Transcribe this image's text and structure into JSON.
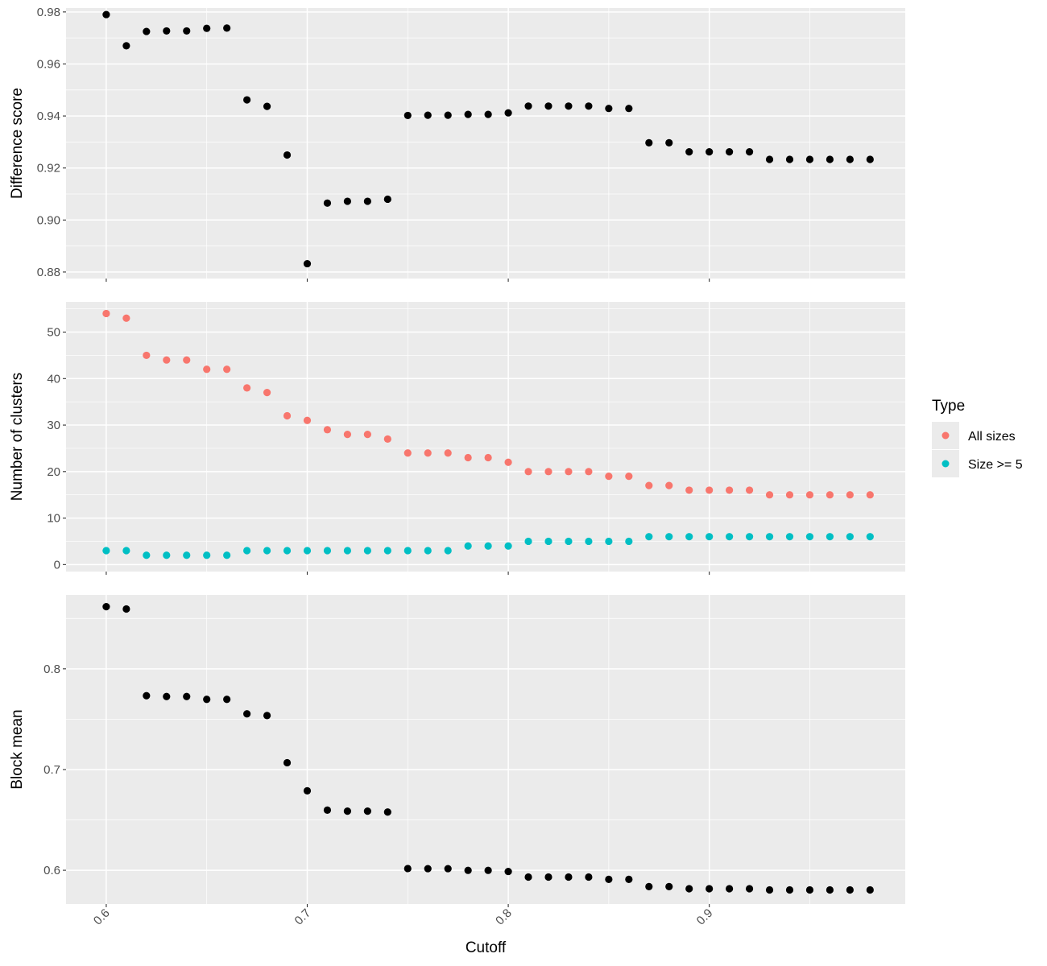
{
  "chart_data": {
    "type": "scatter",
    "x": [
      0.6,
      0.61,
      0.62,
      0.63,
      0.64,
      0.65,
      0.66,
      0.67,
      0.68,
      0.69,
      0.7,
      0.71,
      0.72,
      0.73,
      0.74,
      0.75,
      0.76,
      0.77,
      0.78,
      0.79,
      0.8,
      0.81,
      0.82,
      0.83,
      0.84,
      0.85,
      0.86,
      0.87,
      0.88,
      0.89,
      0.9,
      0.91,
      0.92,
      0.93,
      0.94,
      0.95,
      0.96,
      0.97,
      0.98
    ],
    "xlabel": "Cutoff",
    "xlim": [
      0.58,
      0.9975
    ],
    "xticks": [
      0.6,
      0.7,
      0.8,
      0.9
    ],
    "xtick_labels": [
      "0.6",
      "0.7",
      "0.8",
      "0.9"
    ],
    "grid": true,
    "legend_position": "right",
    "colors": {
      "panel_bg": "#ebebeb",
      "grid": "#ffffff",
      "point": "#000000",
      "all_sizes": "#f8766d",
      "size_ge_5": "#00bfc4"
    },
    "panels": [
      {
        "ylabel": "Difference score",
        "ylim": [
          0.8775,
          0.9815
        ],
        "yticks": [
          0.88,
          0.9,
          0.92,
          0.94,
          0.96,
          0.98
        ],
        "ytick_labels": [
          "0.88",
          "0.90",
          "0.92",
          "0.94",
          "0.96",
          "0.98"
        ],
        "series": [
          {
            "color": "#000000",
            "values": [
              0.979,
              0.967,
              0.9725,
              0.9727,
              0.9727,
              0.9737,
              0.9738,
              0.9462,
              0.9437,
              0.925,
              0.8832,
              0.9065,
              0.9072,
              0.9072,
              0.908,
              0.9402,
              0.9403,
              0.9403,
              0.9406,
              0.9406,
              0.9412,
              0.9438,
              0.9438,
              0.9438,
              0.9438,
              0.9429,
              0.9429,
              0.9297,
              0.9297,
              0.9262,
              0.9262,
              0.9262,
              0.9262,
              0.9233,
              0.9233,
              0.9233,
              0.9233,
              0.9233,
              0.9233
            ]
          }
        ]
      },
      {
        "ylabel": "Number of clusters",
        "ylim": [
          -1.5,
          56.5
        ],
        "yticks": [
          0,
          10,
          20,
          30,
          40,
          50
        ],
        "ytick_labels": [
          "0",
          "10",
          "20",
          "30",
          "40",
          "50"
        ],
        "series": [
          {
            "name": "All sizes",
            "color": "#f8766d",
            "values": [
              54,
              53,
              45,
              44,
              44,
              42,
              42,
              38,
              37,
              32,
              31,
              29,
              28,
              28,
              27,
              24,
              24,
              24,
              23,
              23,
              22,
              20,
              20,
              20,
              20,
              19,
              19,
              17,
              17,
              16,
              16,
              16,
              16,
              15,
              15,
              15,
              15,
              15,
              15
            ]
          },
          {
            "name": "Size >= 5",
            "color": "#00bfc4",
            "values": [
              3,
              3,
              2,
              2,
              2,
              2,
              2,
              3,
              3,
              3,
              3,
              3,
              3,
              3,
              3,
              3,
              3,
              3,
              4,
              4,
              4,
              5,
              5,
              5,
              5,
              5,
              5,
              6,
              6,
              6,
              6,
              6,
              6,
              6,
              6,
              6,
              6,
              6,
              6
            ]
          }
        ]
      },
      {
        "ylabel": "Block mean",
        "ylim": [
          0.5665,
          0.8734
        ],
        "yticks": [
          0.6,
          0.7,
          0.8
        ],
        "ytick_labels": [
          "0.6",
          "0.7",
          "0.8"
        ],
        "series": [
          {
            "color": "#000000",
            "values": [
              0.8617,
              0.8594,
              0.7733,
              0.7725,
              0.7725,
              0.7697,
              0.7697,
              0.7553,
              0.7536,
              0.7068,
              0.6789,
              0.6597,
              0.6587,
              0.6587,
              0.6578,
              0.6017,
              0.6016,
              0.6016,
              0.5999,
              0.5999,
              0.5988,
              0.5933,
              0.5933,
              0.5933,
              0.5933,
              0.591,
              0.591,
              0.5838,
              0.5838,
              0.5817,
              0.5817,
              0.5817,
              0.5817,
              0.5805,
              0.5805,
              0.5805,
              0.5805,
              0.5805,
              0.5805
            ]
          }
        ]
      }
    ],
    "legend": {
      "title": "Type",
      "entries": [
        {
          "label": "All sizes",
          "color": "#f8766d"
        },
        {
          "label": "Size >= 5",
          "color": "#00bfc4"
        }
      ]
    }
  }
}
